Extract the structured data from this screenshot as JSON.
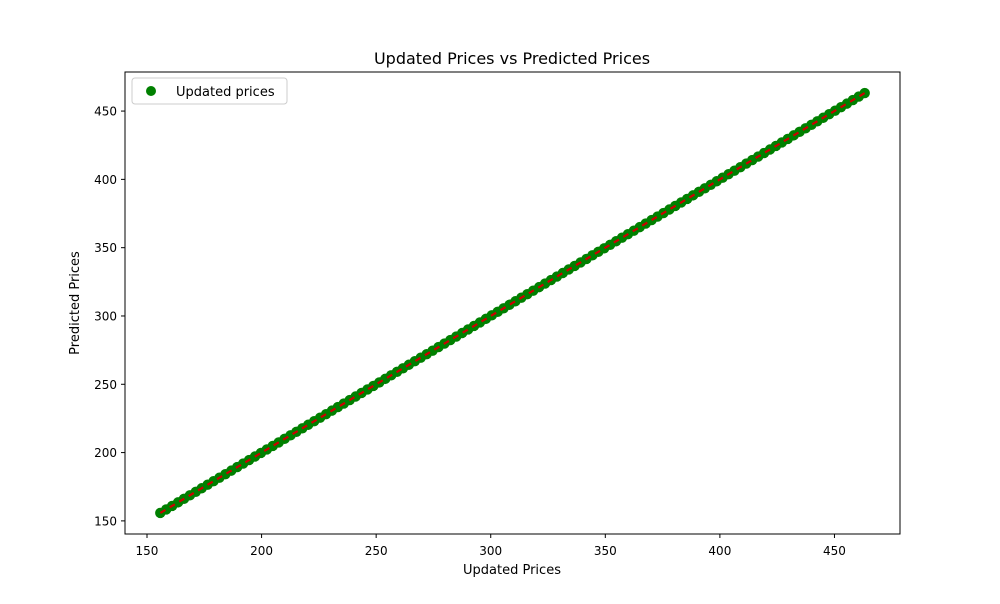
{
  "chart_data": {
    "type": "scatter",
    "title": "Updated Prices vs Predicted Prices",
    "xlabel": "Updated Prices",
    "ylabel": "Predicted Prices",
    "xlim": [
      140.4,
      478.6
    ],
    "ylim": [
      140.4,
      478.6
    ],
    "x_ticks": [
      150,
      200,
      250,
      300,
      350,
      400,
      450
    ],
    "y_ticks": [
      150,
      200,
      250,
      300,
      350,
      400,
      450
    ],
    "grid": false,
    "legend": {
      "position": "top-left",
      "entries": [
        "Updated prices"
      ]
    },
    "series": [
      {
        "name": "Updated prices",
        "marker": "circle",
        "color": "#008000",
        "x_range": [
          155.8,
          463.2
        ],
        "y_range": [
          155.8,
          463.2
        ],
        "relationship": "y equals x",
        "point_count": 120
      }
    ],
    "reference_line": {
      "style": "dashed",
      "color": "#cc0000",
      "from": [
        155.8,
        155.8
      ],
      "to": [
        463.2,
        463.2
      ]
    }
  }
}
